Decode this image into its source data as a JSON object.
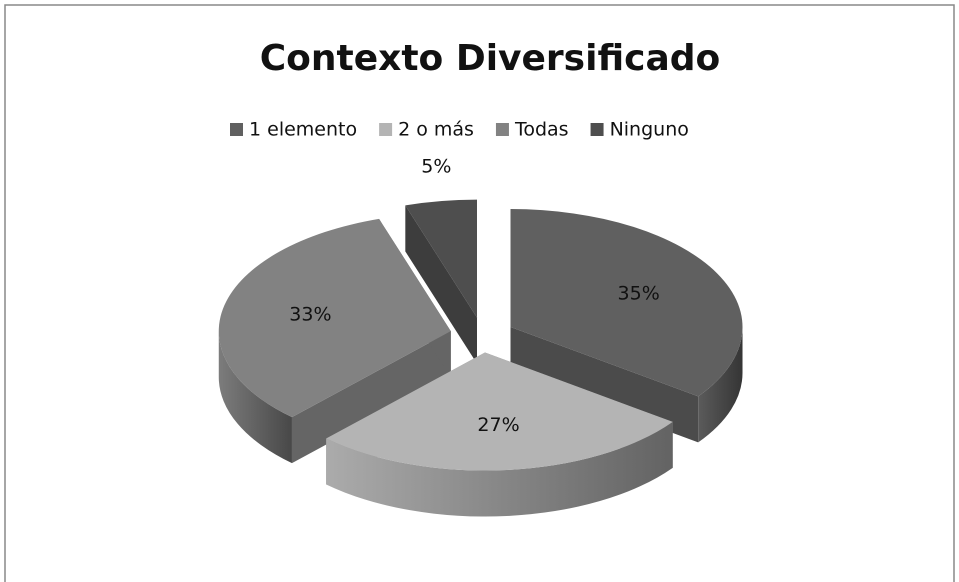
{
  "chart_data": {
    "type": "pie3d",
    "title": "Contexto Diversificado",
    "categories": [
      "1 elemento",
      "2 o más",
      "Todas",
      "Ninguno"
    ],
    "values": [
      35,
      27,
      33,
      5
    ],
    "value_labels": [
      "35%",
      "27%",
      "33%",
      "5%"
    ],
    "colors": [
      "#606060",
      "#b4b4b4",
      "#828282",
      "#4e4e4e"
    ],
    "legend": "top"
  }
}
